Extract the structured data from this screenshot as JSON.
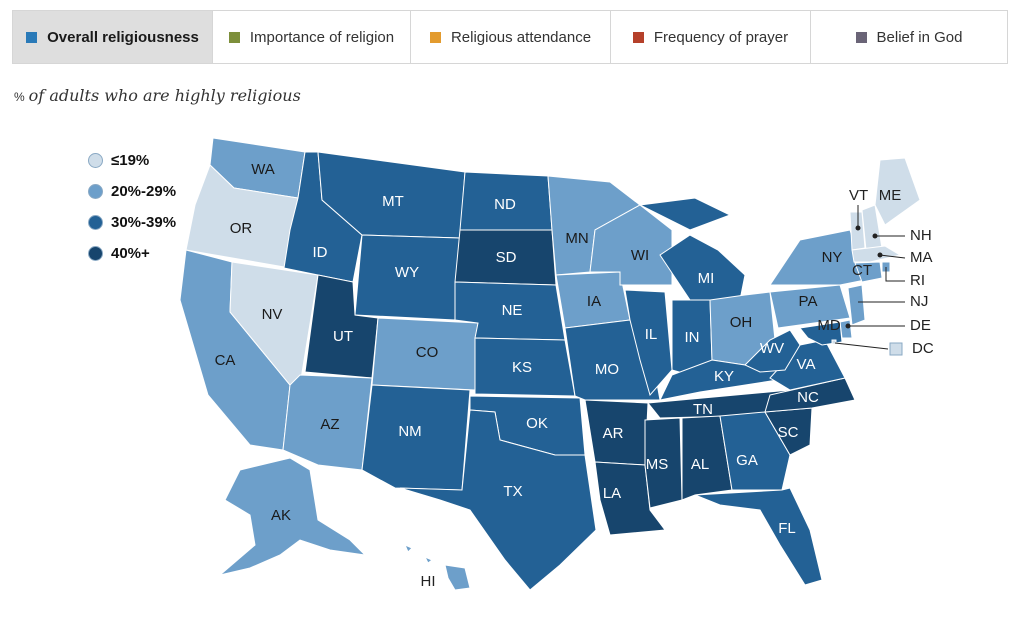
{
  "tabs": [
    {
      "label": "Overall religiousness",
      "color": "#2a7ab8",
      "active": true
    },
    {
      "label": "Importance of religion",
      "color": "#7d8f3b",
      "active": false
    },
    {
      "label": "Religious attendance",
      "color": "#e39b2e",
      "active": false
    },
    {
      "label": "Frequency of prayer",
      "color": "#b5402a",
      "active": false
    },
    {
      "label": "Belief in God",
      "color": "#6a6477",
      "active": false
    }
  ],
  "subtitle": {
    "prefix": "%",
    "text": "of adults who are highly religious"
  },
  "legend": [
    {
      "label": "≤19%",
      "color": "#cfdde9"
    },
    {
      "label": "20%-29%",
      "color": "#6d9fca"
    },
    {
      "label": "30%-39%",
      "color": "#236195"
    },
    {
      "label": "40%+",
      "color": "#17456d"
    }
  ],
  "states": {
    "WA": "20%-29%",
    "OR": "≤19%",
    "CA": "20%-29%",
    "NV": "≤19%",
    "ID": "30%-39%",
    "MT": "30%-39%",
    "WY": "30%-39%",
    "UT": "40%+",
    "AZ": "20%-29%",
    "CO": "20%-29%",
    "NM": "30%-39%",
    "ND": "30%-39%",
    "SD": "40%+",
    "NE": "30%-39%",
    "KS": "30%-39%",
    "OK": "30%-39%",
    "TX": "30%-39%",
    "MN": "20%-29%",
    "IA": "20%-29%",
    "MO": "30%-39%",
    "AR": "40%+",
    "LA": "40%+",
    "WI": "20%-29%",
    "IL": "30%-39%",
    "MI": "30%-39%",
    "IN": "30%-39%",
    "OH": "20%-29%",
    "KY": "30%-39%",
    "TN": "40%+",
    "MS": "40%+",
    "AL": "40%+",
    "GA": "30%-39%",
    "FL": "30%-39%",
    "SC": "40%+",
    "NC": "40%+",
    "VA": "30%-39%",
    "WV": "30%-39%",
    "PA": "20%-29%",
    "NY": "20%-29%",
    "VT": "≤19%",
    "NH": "≤19%",
    "ME": "≤19%",
    "MA": "≤19%",
    "RI": "20%-29%",
    "CT": "20%-29%",
    "NJ": "20%-29%",
    "DE": "20%-29%",
    "MD": "30%-39%",
    "DC": "≤19%",
    "AK": "20%-29%",
    "HI": "20%-29%"
  },
  "callout_labels": [
    "VT",
    "ME",
    "NH",
    "MA",
    "RI",
    "NJ",
    "DE",
    "DC",
    "MD",
    "CT",
    "HI"
  ]
}
